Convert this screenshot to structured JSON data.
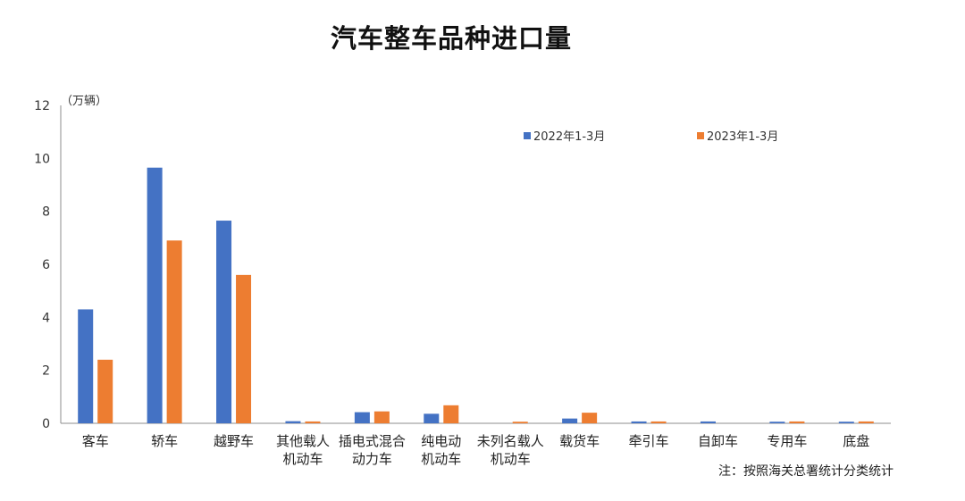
{
  "chart_data": {
    "type": "bar",
    "title": "汽车整车品种进口量",
    "unit_label": "（万辆）",
    "ylim": [
      0,
      12
    ],
    "yticks": [
      0,
      2,
      4,
      6,
      8,
      10,
      12
    ],
    "categories": [
      [
        "客车"
      ],
      [
        "轿车"
      ],
      [
        "越野车"
      ],
      [
        "其他载人",
        "机动车"
      ],
      [
        "插电式混合",
        "动力车"
      ],
      [
        "纯电动",
        "机动车"
      ],
      [
        "未列名载人",
        "机动车"
      ],
      [
        "载货车"
      ],
      [
        "牵引车"
      ],
      [
        "自卸车"
      ],
      [
        "专用车"
      ],
      [
        "底盘"
      ]
    ],
    "series": [
      {
        "name": "2022年1-3月",
        "color": "#4472C4",
        "values": [
          4.3,
          9.65,
          7.65,
          0.08,
          0.42,
          0.36,
          0.0,
          0.18,
          0.07,
          0.07,
          0.06,
          0.06
        ]
      },
      {
        "name": "2023年1-3月",
        "color": "#ED7D31",
        "values": [
          2.4,
          6.9,
          5.6,
          0.07,
          0.45,
          0.68,
          0.06,
          0.4,
          0.07,
          0.0,
          0.07,
          0.07
        ]
      }
    ],
    "legend_position": "top-right",
    "grid": false,
    "footnote": "注：按照海关总署统计分类统计"
  }
}
